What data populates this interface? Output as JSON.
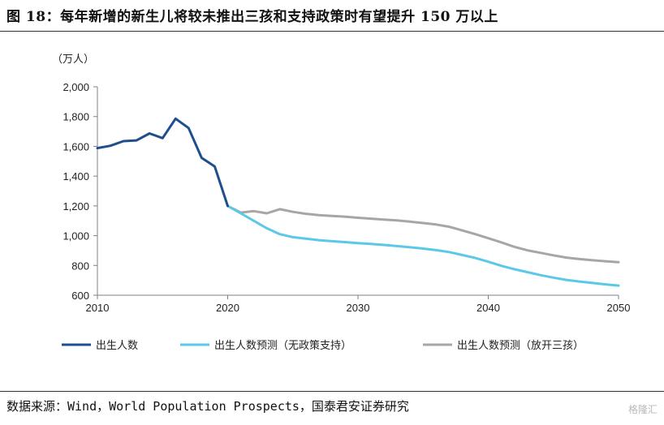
{
  "figure_title": "图 18：每年新增的新生儿将较未推出三孩和支持政策时有望提升 150 万以上",
  "source": "数据来源：Wind，World Population Prospects，国泰君安证券研究",
  "watermark": "格隆汇",
  "chart_data": {
    "type": "line",
    "title": "",
    "ylabel": "（万人）",
    "xlabel": "",
    "xlim": [
      2010,
      2050
    ],
    "ylim": [
      600,
      2000
    ],
    "x_ticks": [
      "2010",
      "2020",
      "2030",
      "2040",
      "2050"
    ],
    "y_ticks": [
      "600",
      "800",
      "1,000",
      "1,200",
      "1,400",
      "1,600",
      "1,800",
      "2,000"
    ],
    "colors": {
      "actual": "#1f4e8c",
      "no_policy": "#5bc8e8",
      "three_child": "#a6a6a6",
      "axis": "#808080"
    },
    "series": [
      {
        "name": "出生人数",
        "key": "actual",
        "points": [
          [
            2010,
            1588
          ],
          [
            2011,
            1604
          ],
          [
            2012,
            1635
          ],
          [
            2013,
            1640
          ],
          [
            2014,
            1687
          ],
          [
            2015,
            1655
          ],
          [
            2016,
            1786
          ],
          [
            2017,
            1723
          ],
          [
            2018,
            1523
          ],
          [
            2019,
            1465
          ],
          [
            2020,
            1200
          ]
        ]
      },
      {
        "name": "出生人数预测（无政策支持）",
        "key": "no_policy",
        "points": [
          [
            2020,
            1200
          ],
          [
            2021,
            1150
          ],
          [
            2022,
            1100
          ],
          [
            2023,
            1050
          ],
          [
            2024,
            1010
          ],
          [
            2025,
            990
          ],
          [
            2026,
            980
          ],
          [
            2027,
            970
          ],
          [
            2028,
            963
          ],
          [
            2029,
            957
          ],
          [
            2030,
            950
          ],
          [
            2031,
            945
          ],
          [
            2032,
            938
          ],
          [
            2033,
            930
          ],
          [
            2034,
            922
          ],
          [
            2035,
            913
          ],
          [
            2036,
            903
          ],
          [
            2037,
            890
          ],
          [
            2038,
            870
          ],
          [
            2039,
            850
          ],
          [
            2040,
            825
          ],
          [
            2041,
            798
          ],
          [
            2042,
            775
          ],
          [
            2043,
            755
          ],
          [
            2044,
            735
          ],
          [
            2045,
            718
          ],
          [
            2046,
            703
          ],
          [
            2047,
            692
          ],
          [
            2048,
            682
          ],
          [
            2049,
            673
          ],
          [
            2050,
            665
          ]
        ]
      },
      {
        "name": "出生人数预测（放开三孩）",
        "key": "three_child",
        "points": [
          [
            2020,
            1200
          ],
          [
            2021,
            1155
          ],
          [
            2022,
            1165
          ],
          [
            2023,
            1150
          ],
          [
            2024,
            1178
          ],
          [
            2025,
            1160
          ],
          [
            2026,
            1147
          ],
          [
            2027,
            1138
          ],
          [
            2028,
            1132
          ],
          [
            2029,
            1128
          ],
          [
            2030,
            1120
          ],
          [
            2031,
            1114
          ],
          [
            2032,
            1108
          ],
          [
            2033,
            1103
          ],
          [
            2034,
            1094
          ],
          [
            2035,
            1085
          ],
          [
            2036,
            1075
          ],
          [
            2037,
            1060
          ],
          [
            2038,
            1035
          ],
          [
            2039,
            1010
          ],
          [
            2040,
            983
          ],
          [
            2041,
            955
          ],
          [
            2042,
            925
          ],
          [
            2043,
            902
          ],
          [
            2044,
            885
          ],
          [
            2045,
            868
          ],
          [
            2046,
            853
          ],
          [
            2047,
            843
          ],
          [
            2048,
            835
          ],
          [
            2049,
            828
          ],
          [
            2050,
            822
          ]
        ]
      }
    ]
  }
}
